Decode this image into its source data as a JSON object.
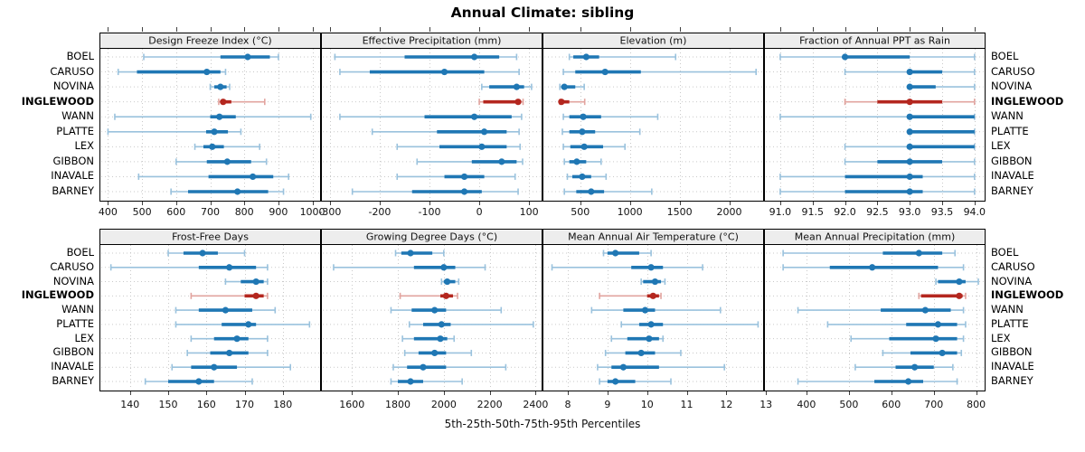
{
  "title": "Annual Climate: sibling",
  "caption": "5th-25th-50th-75th-95th Percentiles",
  "colors": {
    "series_blue": "#1f77b4",
    "series_blue_light": "#9ac2dd",
    "highlight_red": "#b4271f",
    "highlight_red_light": "#e2a49f",
    "strip_bg": "#ededed",
    "panel_border": "#000000",
    "grid": "#c9c9c9",
    "tick": "#404040"
  },
  "chart_data": {
    "type": "scatter",
    "variant": "horizontal 5th-25th-50th-75th-95th percentile dot plot with whiskers, 2x4 trellis panels",
    "stations": [
      "BOEL",
      "CARUSO",
      "NOVINA",
      "INGLEWOOD",
      "WANN",
      "PLATTE",
      "LEX",
      "GIBBON",
      "INAVALE",
      "BARNEY"
    ],
    "highlight_station": "INGLEWOOD",
    "legend_position": "none",
    "grid": "dotted",
    "panels": [
      {
        "title": "Design Freeze Index (°C)",
        "grid_row": 1,
        "grid_col": 1,
        "xlim": [
          375,
          1025
        ],
        "ticks": [
          400,
          500,
          600,
          700,
          800,
          900,
          1000
        ],
        "tick_labels": [
          "400",
          "500",
          "600",
          "700",
          "800",
          "900",
          "1000"
        ],
        "values": {
          "BOEL": [
            505,
            730,
            810,
            875,
            900
          ],
          "CARUSO": [
            430,
            485,
            690,
            730,
            745
          ],
          "NOVINA": [
            700,
            712,
            730,
            748,
            757
          ],
          "INGLEWOOD": [
            725,
            730,
            738,
            762,
            860
          ],
          "WANN": [
            420,
            700,
            727,
            775,
            995
          ],
          "PLATTE": [
            400,
            688,
            712,
            752,
            790
          ],
          "LEX": [
            655,
            680,
            706,
            740,
            845
          ],
          "GIBBON": [
            600,
            690,
            750,
            820,
            865
          ],
          "INAVALE": [
            490,
            695,
            825,
            885,
            930
          ],
          "BARNEY": [
            585,
            635,
            780,
            870,
            915
          ]
        }
      },
      {
        "title": "Effective Precipitation (mm)",
        "grid_row": 1,
        "grid_col": 2,
        "xlim": [
          -318,
          127
        ],
        "ticks": [
          -300,
          -200,
          -100,
          0,
          100
        ],
        "tick_labels": [
          "-300",
          "-200",
          "-100",
          "0",
          "100"
        ],
        "values": {
          "BOEL": [
            -290,
            -150,
            -10,
            40,
            75
          ],
          "CARUSO": [
            -280,
            -220,
            -70,
            10,
            80
          ],
          "NOVINA": [
            5,
            20,
            75,
            90,
            105
          ],
          "INGLEWOOD": [
            0,
            8,
            78,
            84,
            88
          ],
          "WANN": [
            -280,
            -110,
            -10,
            65,
            85
          ],
          "PLATTE": [
            -215,
            -85,
            10,
            55,
            80
          ],
          "LEX": [
            -165,
            -80,
            5,
            55,
            82
          ],
          "GIBBON": [
            -125,
            -15,
            45,
            75,
            87
          ],
          "INAVALE": [
            -165,
            -70,
            -30,
            10,
            72
          ],
          "BARNEY": [
            -255,
            -135,
            -30,
            5,
            78
          ]
        }
      },
      {
        "title": "Elevation (m)",
        "grid_row": 1,
        "grid_col": 3,
        "xlim": [
          120,
          2350
        ],
        "ticks": [
          500,
          1000,
          1500,
          2000
        ],
        "tick_labels": [
          "500",
          "1000",
          "1500",
          "2000"
        ],
        "values": {
          "BOEL": [
            390,
            430,
            560,
            690,
            1460
          ],
          "CARUSO": [
            330,
            450,
            750,
            1110,
            2270
          ],
          "NOVINA": [
            295,
            310,
            340,
            450,
            540
          ],
          "INGLEWOOD": [
            295,
            298,
            310,
            390,
            545
          ],
          "WANN": [
            330,
            390,
            530,
            710,
            1280
          ],
          "PLATTE": [
            320,
            390,
            520,
            650,
            1100
          ],
          "LEX": [
            330,
            400,
            540,
            730,
            950
          ],
          "GIBBON": [
            340,
            390,
            465,
            560,
            710
          ],
          "INAVALE": [
            370,
            420,
            520,
            610,
            760
          ],
          "BARNEY": [
            340,
            460,
            610,
            740,
            1220
          ]
        }
      },
      {
        "title": "Fraction of Annual PPT as Rain",
        "grid_row": 1,
        "grid_col": 4,
        "xlim": [
          90.75,
          94.17
        ],
        "ticks": [
          91.0,
          91.5,
          92.0,
          92.5,
          93.0,
          93.5,
          94.0
        ],
        "tick_labels": [
          "91.0",
          "91.5",
          "92.0",
          "92.5",
          "93.0",
          "93.5",
          "94.0"
        ],
        "values": {
          "BOEL": [
            91,
            92,
            92,
            93,
            94
          ],
          "CARUSO": [
            92,
            93,
            93,
            93.5,
            94
          ],
          "NOVINA": [
            93,
            93,
            93,
            93.4,
            94
          ],
          "INGLEWOOD": [
            92,
            92.5,
            93,
            93.5,
            94
          ],
          "WANN": [
            91,
            93,
            93,
            94,
            94
          ],
          "PLATTE": [
            93,
            93,
            93,
            94,
            94
          ],
          "LEX": [
            92,
            93,
            93,
            94,
            94
          ],
          "GIBBON": [
            92,
            92.5,
            93,
            93.5,
            94
          ],
          "INAVALE": [
            91,
            92,
            93,
            93.2,
            94
          ],
          "BARNEY": [
            91,
            92,
            93,
            93.2,
            94
          ]
        }
      },
      {
        "title": "Frost-Free Days",
        "grid_row": 2,
        "grid_col": 1,
        "xlim": [
          132,
          190
        ],
        "ticks": [
          140,
          150,
          160,
          170,
          180
        ],
        "tick_labels": [
          "140",
          "150",
          "160",
          "170",
          "180"
        ],
        "values": {
          "BOEL": [
            150,
            154,
            159,
            163,
            170
          ],
          "CARUSO": [
            135,
            158,
            166,
            173,
            176
          ],
          "NOVINA": [
            165,
            169,
            173,
            175,
            176
          ],
          "INGLEWOOD": [
            156,
            170,
            173,
            175,
            176
          ],
          "WANN": [
            152,
            158,
            165,
            172,
            178
          ],
          "PLATTE": [
            152,
            164,
            171,
            173,
            187
          ],
          "LEX": [
            156,
            162,
            168,
            171,
            176
          ],
          "GIBBON": [
            155,
            161,
            166,
            171,
            176
          ],
          "INAVALE": [
            151,
            156,
            162,
            168,
            182
          ],
          "BARNEY": [
            144,
            150,
            158,
            162,
            172
          ]
        }
      },
      {
        "title": "Growing Degree Days (°C)",
        "grid_row": 2,
        "grid_col": 2,
        "xlim": [
          1465,
          2430
        ],
        "ticks": [
          1600,
          1800,
          2000,
          2200,
          2400
        ],
        "tick_labels": [
          "1600",
          "1800",
          "2000",
          "2200",
          "2400"
        ],
        "values": {
          "BOEL": [
            1790,
            1815,
            1855,
            1950,
            2000
          ],
          "CARUSO": [
            1520,
            1870,
            2000,
            2050,
            2180
          ],
          "NOVINA": [
            1990,
            2000,
            2015,
            2050,
            2065
          ],
          "INGLEWOOD": [
            1810,
            1985,
            2010,
            2040,
            2060
          ],
          "WANN": [
            1770,
            1860,
            1960,
            2010,
            2250
          ],
          "PLATTE": [
            1850,
            1910,
            1990,
            2030,
            2390
          ],
          "LEX": [
            1820,
            1870,
            1985,
            2015,
            2045
          ],
          "GIBBON": [
            1830,
            1890,
            1960,
            2010,
            2120
          ],
          "INAVALE": [
            1780,
            1840,
            1910,
            2010,
            2270
          ],
          "BARNEY": [
            1770,
            1800,
            1855,
            1910,
            2080
          ]
        }
      },
      {
        "title": "Mean Annual Air Temperature (°C)",
        "grid_row": 2,
        "grid_col": 3,
        "xlim": [
          7.36,
          12.95
        ],
        "ticks": [
          8,
          9,
          10,
          11,
          12,
          13
        ],
        "tick_labels": [
          "8",
          "9",
          "10",
          "11",
          "12",
          "13"
        ],
        "values": {
          "BOEL": [
            8.9,
            9.0,
            9.2,
            9.8,
            10.1
          ],
          "CARUSO": [
            7.6,
            9.6,
            10.1,
            10.4,
            11.4
          ],
          "NOVINA": [
            9.85,
            9.9,
            10.2,
            10.35,
            10.45
          ],
          "INGLEWOOD": [
            8.8,
            10.0,
            10.15,
            10.3,
            10.35
          ],
          "WANN": [
            8.6,
            9.4,
            9.95,
            10.2,
            11.85
          ],
          "PLATTE": [
            9.35,
            9.8,
            10.1,
            10.4,
            12.8
          ],
          "LEX": [
            9.1,
            9.5,
            10.05,
            10.3,
            10.4
          ],
          "GIBBON": [
            8.95,
            9.45,
            9.85,
            10.2,
            10.85
          ],
          "INAVALE": [
            8.75,
            9.1,
            9.4,
            10.3,
            11.95
          ],
          "BARNEY": [
            8.8,
            9.0,
            9.2,
            9.7,
            10.6
          ]
        }
      },
      {
        "title": "Mean Annual Precipitation (mm)",
        "grid_row": 2,
        "grid_col": 4,
        "xlim": [
          300,
          822
        ],
        "ticks": [
          400,
          500,
          600,
          700,
          800
        ],
        "tick_labels": [
          "400",
          "500",
          "600",
          "700",
          "800"
        ],
        "values": {
          "BOEL": [
            345,
            580,
            665,
            720,
            750
          ],
          "CARUSO": [
            345,
            455,
            555,
            710,
            770
          ],
          "NOVINA": [
            705,
            710,
            760,
            775,
            805
          ],
          "INGLEWOOD": [
            665,
            670,
            760,
            768,
            775
          ],
          "WANN": [
            380,
            575,
            680,
            740,
            770
          ],
          "PLATTE": [
            450,
            635,
            710,
            755,
            775
          ],
          "LEX": [
            505,
            595,
            705,
            755,
            770
          ],
          "GIBBON": [
            580,
            645,
            720,
            755,
            765
          ],
          "INAVALE": [
            515,
            610,
            655,
            700,
            745
          ],
          "BARNEY": [
            380,
            560,
            640,
            675,
            755
          ]
        }
      }
    ]
  }
}
